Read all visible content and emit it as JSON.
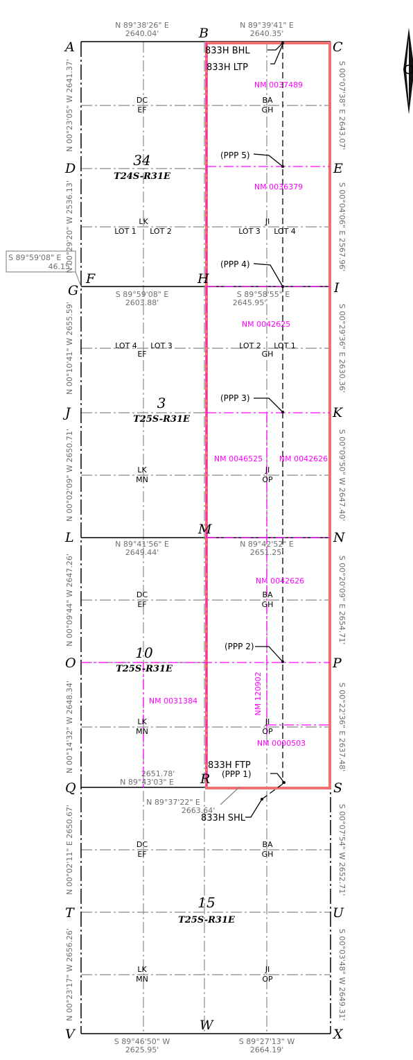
{
  "corners": {
    "A": "A",
    "B": "B",
    "C": "C",
    "D": "D",
    "E": "E",
    "F": "F",
    "G": "G",
    "H": "H",
    "I": "I",
    "J": "J",
    "K": "K",
    "L": "L",
    "M": "M",
    "N": "N",
    "O": "O",
    "P": "P",
    "Q": "Q",
    "R": "R",
    "S": "S",
    "T": "T",
    "U": "U",
    "V": "V",
    "W": "W",
    "X": "X"
  },
  "bearings": {
    "top_left": {
      "bearing": "N 89°38'26\" E",
      "distance": "2640.04'"
    },
    "top_right": {
      "bearing": "N 89°39'41\" E",
      "distance": "2640.35'"
    },
    "g_h": {
      "bearing": "S 89°59'08\" E",
      "distance": "2603.88'"
    },
    "h_i": {
      "bearing": "S 89°58'55\" E",
      "distance": "2645.95'"
    },
    "l_m": {
      "bearing": "N 89°41'56\" E",
      "distance": "2649.44'"
    },
    "m_n": {
      "bearing": "N 89°42'52\" E",
      "distance": "2651.25'"
    },
    "q_r": {
      "distance": "2651.78'",
      "bearing": "N 89°43'03\" E"
    },
    "r_s": {
      "bearing": "N 89°37'22\" E",
      "distance": "2663.64'"
    },
    "v_w": {
      "bearing": "S 89°46'50\" W",
      "distance": "2625.95'"
    },
    "w_x": {
      "bearing": "S 89°27'13\" W",
      "distance": "2664.19'"
    },
    "boxed": {
      "bearing": "S 89°59'08\" E",
      "distance": "46.15'"
    }
  },
  "side_bearings": {
    "left": [
      "N 00°23'05\" W 2641.37'",
      "N 00°29'20\" W 2536.13'",
      "N 00°10'41\" W 2655.59'",
      "N 00°02'09\" W 2650.71'",
      "N 00°09'44\" W 2647.26'",
      "N 00°14'32\" W 2648.34'",
      "N 00°02'11\" E 2650.67'",
      "N 00°23'17\" W 2656.26'"
    ],
    "right": [
      "S 00°07'38\" E 2643.07'",
      "S 00°04'06\" E 2567.96'",
      "S 00°29'36\" E 2630.36'",
      "S 00°09'50\" W 2647.40'",
      "S 00°20'09\" E 2654.71'",
      "S 00°22'36\" E 2637.48'",
      "S 00°07'54\" W 2652.71'",
      "S 00°03'48\" W 2649.31'"
    ]
  },
  "sections": [
    {
      "number": "34",
      "township": "T24S-R31E"
    },
    {
      "number": "3",
      "township": "T25S-R31E"
    },
    {
      "number": "10",
      "township": "T25S-R31E"
    },
    {
      "number": "15",
      "township": "T25S-R31E"
    }
  ],
  "quarter_labels": {
    "dc": "DC",
    "ef": "EF",
    "ba": "BA",
    "gh": "GH",
    "lk": "LK",
    "mn": "MN",
    "ji": "JI",
    "op": "OP",
    "lot1": "LOT 1",
    "lot2": "LOT 2",
    "lot3": "LOT 3",
    "lot4": "LOT 4"
  },
  "leases": {
    "nm1": "NM 0037489",
    "nm2": "NM 0036379",
    "nm3": "NM 0042625",
    "nm4": "NM 0046525",
    "nm5": "NM 0042626",
    "nm6": "NM 0042626",
    "nm7": "NM 0031384",
    "nm8": "NM 120902",
    "nm9": "NM 0000503"
  },
  "callouts": {
    "bhl": "833H BHL",
    "ltp": "833H LTP",
    "ftp": "833H FTP",
    "shl": "833H SHL",
    "ppp1": "(PPP 1)",
    "ppp2": "(PPP 2)",
    "ppp3": "(PPP 3)",
    "ppp4": "(PPP 4)",
    "ppp5": "(PPP 5)"
  },
  "colors": {
    "lease_line": "#ff00ff",
    "project_area": "#f07070",
    "line": "#000000",
    "bearing_text": "#6e6e6e"
  }
}
